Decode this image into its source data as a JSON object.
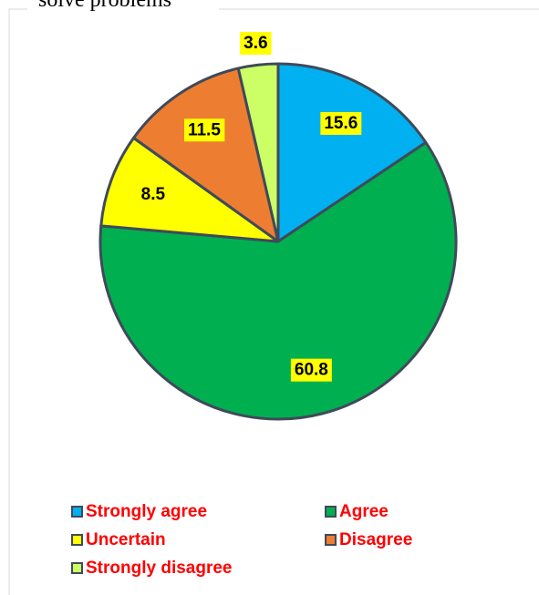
{
  "chart_data": {
    "type": "pie",
    "title": "solve problems",
    "categories": [
      "Strongly agree",
      "Agree",
      "Uncertain",
      "Disagree",
      "Strongly disagree"
    ],
    "values": [
      15.6,
      60.8,
      8.5,
      11.5,
      3.6
    ],
    "colors": [
      "#00b0f0",
      "#00b050",
      "#ffff00",
      "#ed7d31",
      "#ccff66"
    ],
    "legend": "bottom"
  }
}
